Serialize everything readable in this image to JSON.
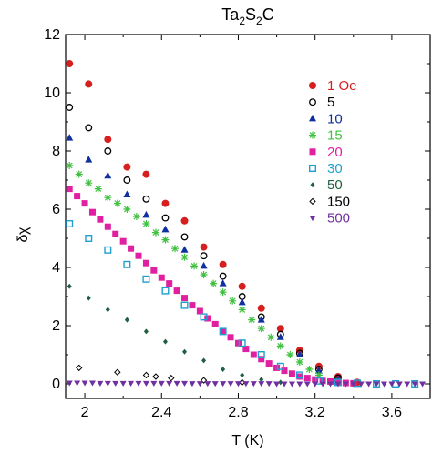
{
  "chart_data": {
    "type": "scatter",
    "title": "Ta2S2C",
    "title_parts": {
      "base": "Ta",
      "sub1": "2",
      "mid": "S",
      "sub2": "2",
      "tail": "C"
    },
    "xlabel": "T (K)",
    "ylabel": "δχ",
    "xlim": [
      1.9,
      3.8
    ],
    "ylim": [
      -0.5,
      12
    ],
    "xticks": [
      {
        "value": 2.0,
        "label": "2"
      },
      {
        "value": 2.4,
        "label": "2.4"
      },
      {
        "value": 2.8,
        "label": "2.8"
      },
      {
        "value": 3.2,
        "label": "3.2"
      },
      {
        "value": 3.6,
        "label": "3.6"
      }
    ],
    "yticks": [
      {
        "value": 0,
        "label": "0"
      },
      {
        "value": 2,
        "label": "2"
      },
      {
        "value": 4,
        "label": "4"
      },
      {
        "value": 6,
        "label": "6"
      },
      {
        "value": 8,
        "label": "8"
      },
      {
        "value": 10,
        "label": "10"
      },
      {
        "value": 12,
        "label": "12"
      }
    ],
    "grid": false,
    "legend_position": "top-right",
    "series": [
      {
        "name": "1 Oe",
        "marker": "filled-circle",
        "color": "#d62020",
        "x": [
          1.92,
          2.02,
          2.12,
          2.22,
          2.32,
          2.42,
          2.52,
          2.62,
          2.72,
          2.82,
          2.92,
          3.02,
          3.12,
          3.22,
          3.32,
          3.42
        ],
        "y": [
          11.0,
          10.3,
          8.4,
          7.45,
          7.2,
          6.2,
          5.6,
          4.7,
          4.1,
          3.35,
          2.6,
          1.9,
          1.15,
          0.6,
          0.25,
          0.05
        ]
      },
      {
        "name": "5",
        "marker": "open-circle",
        "color": "#000000",
        "x": [
          1.92,
          2.02,
          2.12,
          2.22,
          2.32,
          2.42,
          2.52,
          2.62,
          2.72,
          2.82,
          2.92,
          3.02,
          3.12,
          3.22,
          3.32
        ],
        "y": [
          9.5,
          8.8,
          8.0,
          7.0,
          6.35,
          5.7,
          5.05,
          4.4,
          3.7,
          3.0,
          2.3,
          1.7,
          1.05,
          0.5,
          0.2
        ]
      },
      {
        "name": "10",
        "marker": "filled-triangle-up",
        "color": "#1030a0",
        "x": [
          1.92,
          2.02,
          2.12,
          2.22,
          2.32,
          2.42,
          2.52,
          2.62,
          2.72,
          2.82,
          2.92,
          3.02,
          3.12,
          3.22,
          3.32
        ],
        "y": [
          8.45,
          7.7,
          7.15,
          6.5,
          5.8,
          5.3,
          4.6,
          4.05,
          3.45,
          2.8,
          2.2,
          1.6,
          1.0,
          0.45,
          0.15
        ]
      },
      {
        "name": "15",
        "marker": "star",
        "color": "#40c040",
        "x": [
          1.92,
          1.97,
          2.02,
          2.07,
          2.12,
          2.17,
          2.22,
          2.27,
          2.32,
          2.37,
          2.42,
          2.47,
          2.52,
          2.57,
          2.62,
          2.67,
          2.72,
          2.77,
          2.82,
          2.87,
          2.92,
          2.97,
          3.02,
          3.07,
          3.12,
          3.17,
          3.22
        ],
        "y": [
          7.5,
          7.2,
          6.9,
          6.7,
          6.4,
          6.2,
          6.0,
          5.75,
          5.5,
          5.2,
          4.95,
          4.65,
          4.35,
          4.05,
          3.75,
          3.45,
          3.15,
          2.85,
          2.55,
          2.2,
          1.9,
          1.6,
          1.3,
          1.0,
          0.75,
          0.5,
          0.3
        ]
      },
      {
        "name": "20",
        "marker": "filled-square",
        "color": "#e020a0",
        "x": [
          1.92,
          1.96,
          2.0,
          2.04,
          2.08,
          2.12,
          2.16,
          2.2,
          2.24,
          2.28,
          2.32,
          2.36,
          2.4,
          2.44,
          2.48,
          2.52,
          2.56,
          2.6,
          2.64,
          2.68,
          2.72,
          2.76,
          2.8,
          2.84,
          2.88,
          2.92,
          2.96,
          3.0,
          3.04,
          3.08,
          3.12,
          3.16,
          3.2,
          3.24,
          3.28,
          3.32,
          3.36,
          3.4
        ],
        "y": [
          6.7,
          6.45,
          6.2,
          5.9,
          5.65,
          5.4,
          5.15,
          4.9,
          4.65,
          4.4,
          4.15,
          3.9,
          3.65,
          3.45,
          3.2,
          2.95,
          2.7,
          2.5,
          2.25,
          2.05,
          1.8,
          1.6,
          1.4,
          1.2,
          1.0,
          0.85,
          0.7,
          0.55,
          0.45,
          0.35,
          0.25,
          0.2,
          0.15,
          0.1,
          0.08,
          0.05,
          0.03,
          0.02
        ]
      },
      {
        "name": "30",
        "marker": "open-square",
        "color": "#20a0d0",
        "x": [
          1.92,
          2.02,
          2.12,
          2.22,
          2.32,
          2.42,
          2.52,
          2.62,
          2.72,
          2.82,
          2.92,
          3.02,
          3.12,
          3.22,
          3.32,
          3.42,
          3.52,
          3.62,
          3.72
        ],
        "y": [
          5.5,
          5.0,
          4.6,
          4.1,
          3.6,
          3.2,
          2.7,
          2.3,
          1.8,
          1.4,
          1.0,
          0.6,
          0.3,
          0.1,
          0.05,
          0.02,
          0.0,
          0.0,
          0.0
        ]
      },
      {
        "name": "50",
        "marker": "filled-diamond",
        "color": "#206040",
        "x": [
          1.92,
          2.02,
          2.12,
          2.22,
          2.32,
          2.42,
          2.52,
          2.62,
          2.72,
          2.82,
          2.92,
          3.02
        ],
        "y": [
          3.35,
          2.95,
          2.55,
          2.2,
          1.8,
          1.45,
          1.1,
          0.8,
          0.5,
          0.3,
          0.15,
          0.05
        ]
      },
      {
        "name": "150",
        "marker": "open-diamond",
        "color": "#000000",
        "x": [
          1.97,
          2.17,
          2.32,
          2.37,
          2.45,
          2.62,
          2.82
        ],
        "y": [
          0.55,
          0.4,
          0.3,
          0.25,
          0.2,
          0.12,
          0.05
        ]
      },
      {
        "name": "500",
        "marker": "filled-triangle-down",
        "color": "#7030a0",
        "x": [
          1.92,
          1.96,
          2.0,
          2.04,
          2.08,
          2.12,
          2.16,
          2.2,
          2.24,
          2.28,
          2.32,
          2.36,
          2.4,
          2.44,
          2.48,
          2.52,
          2.56,
          2.6,
          2.64,
          2.68,
          2.72,
          2.76,
          2.8,
          2.84,
          2.88,
          2.92,
          2.96,
          3.0,
          3.04,
          3.08,
          3.12,
          3.16,
          3.2,
          3.24,
          3.28,
          3.32,
          3.36,
          3.4,
          3.44,
          3.48,
          3.52,
          3.56,
          3.6,
          3.64,
          3.68,
          3.72,
          3.76
        ],
        "y": [
          0.03,
          0.03,
          0.03,
          0.03,
          0.02,
          0.02,
          0.02,
          0.02,
          0.02,
          0.02,
          0.02,
          0.02,
          0.02,
          0.02,
          0.02,
          0.02,
          0.01,
          0.01,
          0.01,
          0.01,
          0.01,
          0.01,
          0.01,
          0.01,
          0.01,
          0.01,
          0.01,
          0.0,
          0.0,
          0.0,
          0.0,
          0.0,
          0.0,
          0.0,
          0.0,
          0.0,
          0.0,
          0.0,
          0.0,
          0.0,
          0.0,
          0.0,
          0.0,
          0.0,
          0.0,
          0.0,
          0.0
        ]
      }
    ]
  }
}
